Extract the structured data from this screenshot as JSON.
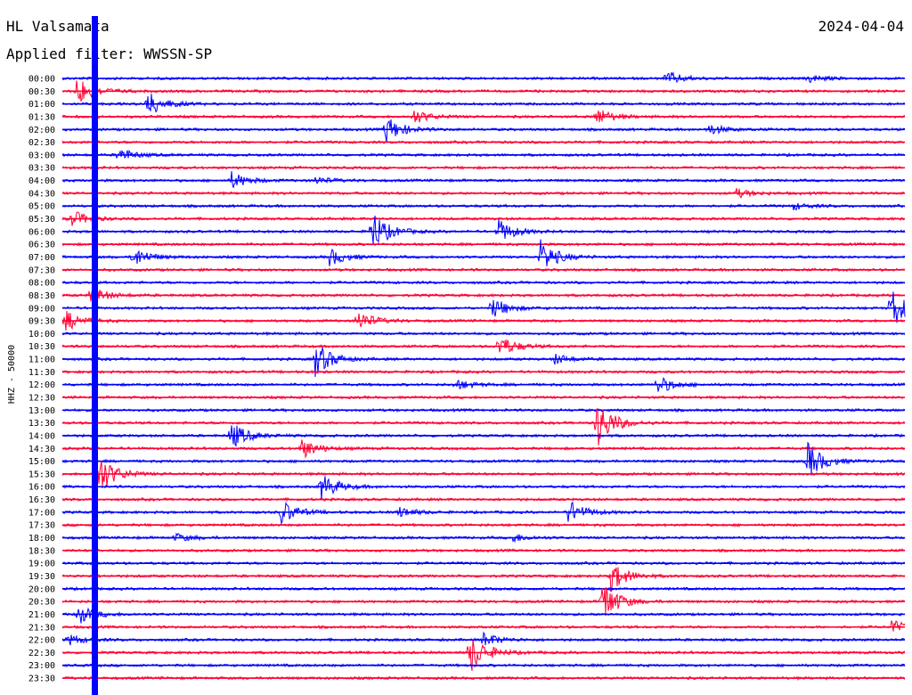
{
  "header": {
    "station": "HL Valsamata",
    "date": "2024-04-04",
    "filter": "Applied filter: WWSSN-SP"
  },
  "chart_data": {
    "type": "line",
    "subtype": "helicorder",
    "title": "HL Valsamata",
    "ylabel": "HHZ - 50000",
    "trace_colors": [
      "#0000ff",
      "#ff0033"
    ],
    "grid": false,
    "row_labels": [
      "00:00",
      "00:30",
      "01:00",
      "01:30",
      "02:00",
      "02:30",
      "03:00",
      "03:30",
      "04:00",
      "04:30",
      "05:00",
      "05:30",
      "06:00",
      "06:30",
      "07:00",
      "07:30",
      "08:00",
      "08:30",
      "09:00",
      "09:30",
      "10:00",
      "10:30",
      "11:00",
      "11:30",
      "12:00",
      "12:30",
      "13:00",
      "13:30",
      "14:00",
      "14:30",
      "15:00",
      "15:30",
      "16:00",
      "16:30",
      "17:00",
      "17:30",
      "18:00",
      "18:30",
      "19:00",
      "19:30",
      "20:00",
      "20:30",
      "21:00",
      "21:30",
      "22:00",
      "22:30",
      "23:00",
      "23:30"
    ],
    "minutes_per_row": 30,
    "events": [
      {
        "row": 0,
        "minute": 21.5,
        "amp": 8
      },
      {
        "row": 0,
        "minute": 26.5,
        "amp": 5
      },
      {
        "row": 1,
        "minute": 0.5,
        "amp": 18
      },
      {
        "row": 2,
        "minute": 3.0,
        "amp": 16
      },
      {
        "row": 3,
        "minute": 19.0,
        "amp": 10
      },
      {
        "row": 3,
        "minute": 12.5,
        "amp": 8
      },
      {
        "row": 4,
        "minute": 11.5,
        "amp": 16
      },
      {
        "row": 4,
        "minute": 23.0,
        "amp": 6
      },
      {
        "row": 6,
        "minute": 2.0,
        "amp": 8
      },
      {
        "row": 8,
        "minute": 6.0,
        "amp": 10
      },
      {
        "row": 8,
        "minute": 9.0,
        "amp": 4
      },
      {
        "row": 9,
        "minute": 24.0,
        "amp": 5
      },
      {
        "row": 10,
        "minute": 26.0,
        "amp": 4
      },
      {
        "row": 11,
        "minute": 0.3,
        "amp": 10
      },
      {
        "row": 12,
        "minute": 11.0,
        "amp": 24
      },
      {
        "row": 12,
        "minute": 15.5,
        "amp": 14
      },
      {
        "row": 14,
        "minute": 17.0,
        "amp": 20
      },
      {
        "row": 14,
        "minute": 9.5,
        "amp": 10
      },
      {
        "row": 14,
        "minute": 2.5,
        "amp": 12
      },
      {
        "row": 17,
        "minute": 1.0,
        "amp": 10
      },
      {
        "row": 18,
        "minute": 15.3,
        "amp": 12
      },
      {
        "row": 18,
        "minute": 29.5,
        "amp": 24
      },
      {
        "row": 19,
        "minute": 0.1,
        "amp": 12
      },
      {
        "row": 19,
        "minute": 10.5,
        "amp": 12
      },
      {
        "row": 21,
        "minute": 15.5,
        "amp": 14
      },
      {
        "row": 22,
        "minute": 9.0,
        "amp": 20
      },
      {
        "row": 22,
        "minute": 17.5,
        "amp": 6
      },
      {
        "row": 24,
        "minute": 14.0,
        "amp": 6
      },
      {
        "row": 24,
        "minute": 21.2,
        "amp": 10
      },
      {
        "row": 27,
        "minute": 19.0,
        "amp": 30
      },
      {
        "row": 28,
        "minute": 6.0,
        "amp": 16
      },
      {
        "row": 29,
        "minute": 8.5,
        "amp": 12
      },
      {
        "row": 30,
        "minute": 26.5,
        "amp": 22
      },
      {
        "row": 31,
        "minute": 1.2,
        "amp": 28
      },
      {
        "row": 32,
        "minute": 9.2,
        "amp": 16
      },
      {
        "row": 34,
        "minute": 7.8,
        "amp": 14
      },
      {
        "row": 34,
        "minute": 18.0,
        "amp": 14
      },
      {
        "row": 34,
        "minute": 12.0,
        "amp": 6
      },
      {
        "row": 36,
        "minute": 4.0,
        "amp": 5
      },
      {
        "row": 36,
        "minute": 16.0,
        "amp": 5
      },
      {
        "row": 39,
        "minute": 19.5,
        "amp": 18
      },
      {
        "row": 41,
        "minute": 19.2,
        "amp": 26
      },
      {
        "row": 42,
        "minute": 0.5,
        "amp": 12
      },
      {
        "row": 43,
        "minute": 29.5,
        "amp": 8
      },
      {
        "row": 44,
        "minute": 15.0,
        "amp": 8
      },
      {
        "row": 44,
        "minute": 0.2,
        "amp": 6
      },
      {
        "row": 45,
        "minute": 14.5,
        "amp": 24
      }
    ]
  }
}
